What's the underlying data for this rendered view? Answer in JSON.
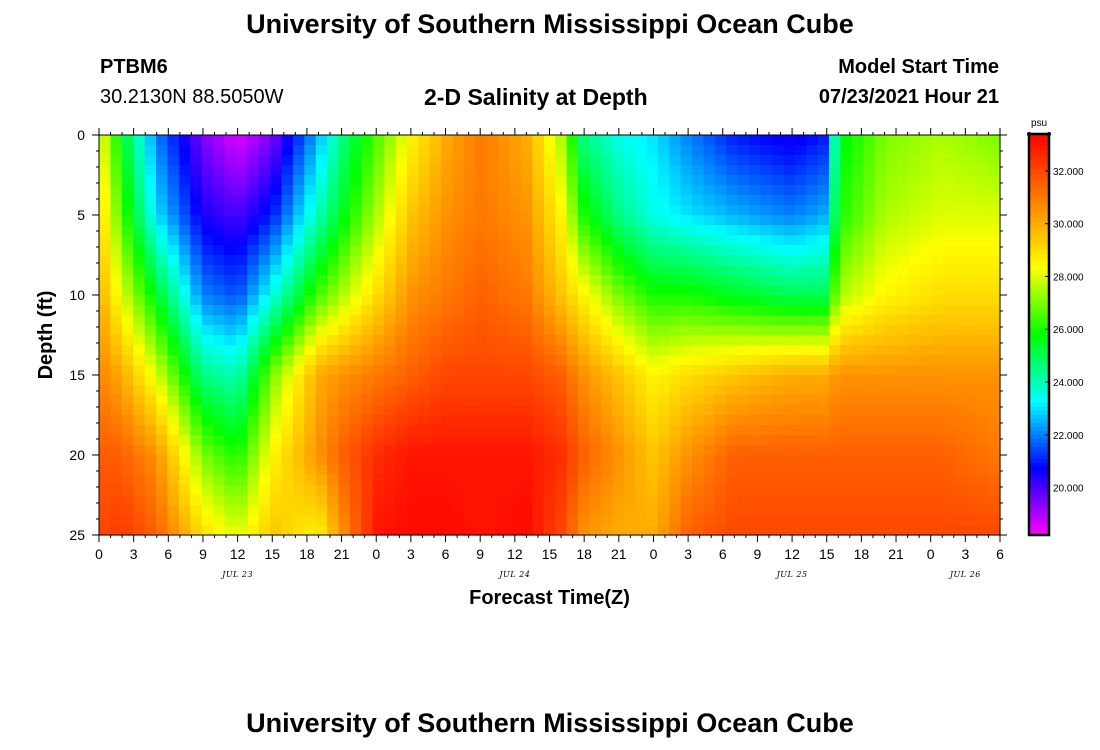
{
  "header": {
    "title_top": "University of Southern Mississippi Ocean Cube",
    "title_bottom": "University of Southern Mississippi Ocean Cube",
    "station_id": "PTBM6",
    "station_coords": "30.2130N  88.5050W",
    "plot_title": "2-D Salinity at Depth",
    "model_label": "Model Start Time",
    "model_time": "07/23/2021 Hour 21"
  },
  "chart_data": {
    "type": "heatmap",
    "title": "2-D Salinity at Depth",
    "xlabel": "Forecast Time(Z)",
    "ylabel": "Depth (ft)",
    "x_range_hours": [
      0,
      78
    ],
    "x_ticks": [
      {
        "h": 0,
        "label": "0"
      },
      {
        "h": 3,
        "label": "3"
      },
      {
        "h": 6,
        "label": "6"
      },
      {
        "h": 9,
        "label": "9"
      },
      {
        "h": 12,
        "label": "12"
      },
      {
        "h": 15,
        "label": "15"
      },
      {
        "h": 18,
        "label": "18"
      },
      {
        "h": 21,
        "label": "21"
      },
      {
        "h": 24,
        "label": "0"
      },
      {
        "h": 27,
        "label": "3"
      },
      {
        "h": 30,
        "label": "6"
      },
      {
        "h": 33,
        "label": "9"
      },
      {
        "h": 36,
        "label": "12"
      },
      {
        "h": 39,
        "label": "15"
      },
      {
        "h": 42,
        "label": "18"
      },
      {
        "h": 45,
        "label": "21"
      },
      {
        "h": 48,
        "label": "0"
      },
      {
        "h": 51,
        "label": "3"
      },
      {
        "h": 54,
        "label": "6"
      },
      {
        "h": 57,
        "label": "9"
      },
      {
        "h": 60,
        "label": "12"
      },
      {
        "h": 63,
        "label": "15"
      },
      {
        "h": 66,
        "label": "18"
      },
      {
        "h": 69,
        "label": "21"
      },
      {
        "h": 72,
        "label": "0"
      },
      {
        "h": 75,
        "label": "3"
      },
      {
        "h": 78,
        "label": "6"
      }
    ],
    "date_labels": [
      {
        "h": 12,
        "label": "JUL 23"
      },
      {
        "h": 36,
        "label": "JUL 24"
      },
      {
        "h": 60,
        "label": "JUL 25"
      },
      {
        "h": 75,
        "label": "JUL 26"
      }
    ],
    "y_range": [
      0,
      25
    ],
    "y_ticks": [
      0,
      5,
      10,
      15,
      20,
      25
    ],
    "colorbar": {
      "unit": "psu",
      "range": [
        18.2,
        33.4
      ],
      "tick_values": [
        20,
        22,
        24,
        26,
        28,
        30,
        32
      ],
      "tick_labels": [
        "20.000",
        "22.000",
        "24.000",
        "26.000",
        "28.000",
        "30.000",
        "32.000"
      ],
      "colors": [
        "#ff00ff",
        "#8000ff",
        "#0000ff",
        "#0080ff",
        "#00ffff",
        "#00ff80",
        "#00ff00",
        "#80ff00",
        "#ffff00",
        "#ffc000",
        "#ff8000",
        "#ff4000",
        "#ff0000"
      ]
    },
    "depth_profiles": [
      {
        "h": 0,
        "values": [
          28.5,
          29.2,
          30.0,
          30.8,
          31.6,
          32.0
        ]
      },
      {
        "h": 2,
        "values": [
          25.5,
          26.5,
          28.0,
          30.0,
          31.5,
          32.3
        ]
      },
      {
        "h": 5,
        "values": [
          22.0,
          23.0,
          25.5,
          28.0,
          30.5,
          31.5
        ]
      },
      {
        "h": 9,
        "values": [
          19.5,
          20.5,
          22.0,
          24.5,
          27.0,
          29.0
        ]
      },
      {
        "h": 12,
        "values": [
          18.5,
          20.0,
          21.5,
          24.0,
          26.0,
          28.0
        ]
      },
      {
        "h": 15,
        "values": [
          19.5,
          21.0,
          23.5,
          27.0,
          28.5,
          29.5
        ]
      },
      {
        "h": 19,
        "values": [
          22.5,
          24.0,
          26.5,
          30.0,
          30.5,
          28.5
        ]
      },
      {
        "h": 21,
        "values": [
          24.5,
          25.5,
          27.5,
          30.5,
          31.5,
          30.5
        ]
      },
      {
        "h": 24,
        "values": [
          26.5,
          27.5,
          29.0,
          31.0,
          32.5,
          33.0
        ]
      },
      {
        "h": 27,
        "values": [
          28.5,
          29.5,
          30.5,
          31.5,
          33.0,
          33.2
        ]
      },
      {
        "h": 30,
        "values": [
          30.0,
          30.5,
          31.0,
          32.0,
          33.0,
          33.2
        ]
      },
      {
        "h": 33,
        "values": [
          31.0,
          31.0,
          31.5,
          32.0,
          33.0,
          33.0
        ]
      },
      {
        "h": 37,
        "values": [
          30.0,
          30.5,
          31.0,
          32.0,
          33.0,
          33.2
        ]
      },
      {
        "h": 40,
        "values": [
          27.5,
          28.5,
          29.5,
          31.5,
          32.5,
          32.0
        ]
      },
      {
        "h": 42,
        "values": [
          24.5,
          26.0,
          28.5,
          30.5,
          31.5,
          30.5
        ]
      },
      {
        "h": 45,
        "values": [
          23.5,
          24.5,
          27.0,
          29.5,
          30.5,
          30.0
        ]
      },
      {
        "h": 48,
        "values": [
          23.0,
          23.5,
          26.0,
          28.5,
          29.5,
          30.0
        ]
      },
      {
        "h": 51,
        "values": [
          22.0,
          23.0,
          26.0,
          29.0,
          30.5,
          31.5
        ]
      },
      {
        "h": 55,
        "values": [
          21.0,
          22.5,
          25.5,
          29.5,
          31.5,
          32.0
        ]
      },
      {
        "h": 60,
        "values": [
          20.5,
          22.0,
          25.0,
          30.0,
          31.5,
          32.0
        ]
      },
      {
        "h": 63,
        "values": [
          21.0,
          22.5,
          25.0,
          30.0,
          31.5,
          32.0
        ]
      },
      {
        "h": 64,
        "values": [
          25.5,
          26.0,
          27.5,
          30.5,
          31.5,
          32.0
        ]
      },
      {
        "h": 68,
        "values": [
          27.0,
          27.5,
          28.5,
          30.5,
          31.5,
          32.0
        ]
      },
      {
        "h": 73,
        "values": [
          27.5,
          28.0,
          29.0,
          30.5,
          31.5,
          32.0
        ]
      },
      {
        "h": 78,
        "values": [
          27.0,
          28.0,
          29.0,
          30.5,
          31.0,
          32.0
        ]
      }
    ]
  }
}
